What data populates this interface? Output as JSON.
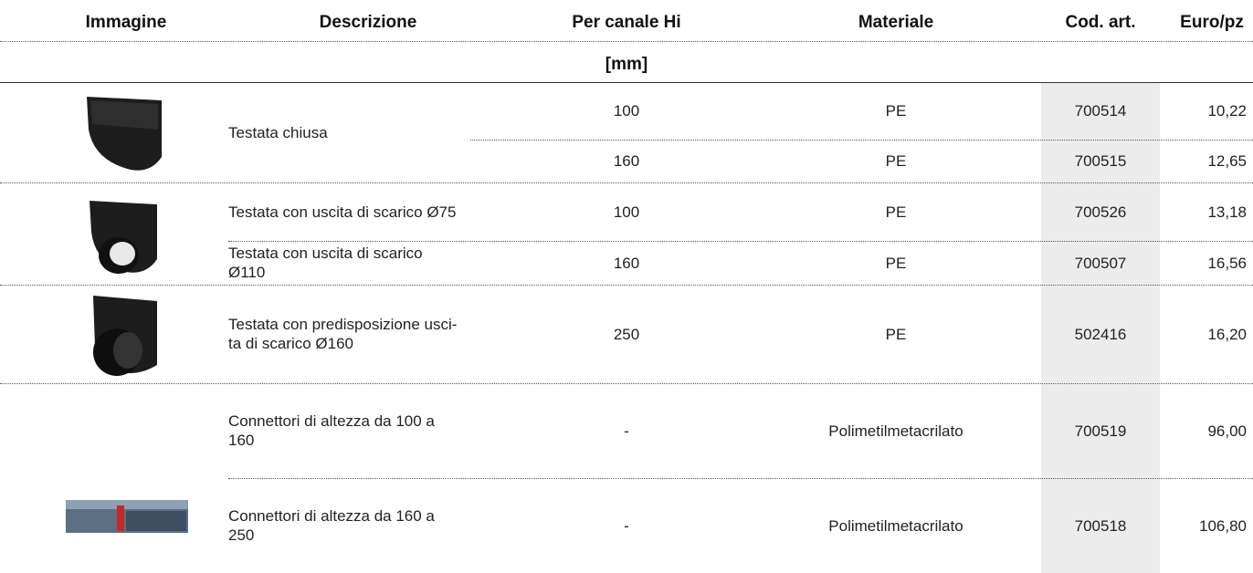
{
  "header": {
    "columns": [
      "Immagine",
      "Descrizione",
      "Per canale Hi",
      "Materiale",
      "Cod. art.",
      "Euro/pz"
    ],
    "unit": "[mm]"
  },
  "rows": [
    {
      "description": "Testata chiusa",
      "hi": 100,
      "material": "PE",
      "code": 700514,
      "price": "10,22"
    },
    {
      "hi": 160,
      "material": "PE",
      "code": 700515,
      "price": "12,65"
    },
    {
      "description": "Testata con uscita di scarico Ø75",
      "hi": 100,
      "material": "PE",
      "code": 700526,
      "price": "13,18"
    },
    {
      "description": "Testata con uscita di scarico\nØ110",
      "hi": 160,
      "material": "PE",
      "code": 700507,
      "price": "16,56"
    },
    {
      "description": "Testata con predisposizione usci-\nta di scarico Ø160",
      "hi": 250,
      "material": "PE",
      "code": 502416,
      "price": "16,20"
    },
    {
      "description": "Connettori di altezza da 100 a\n160",
      "hi": "-",
      "material": "Polimetilmetacrilato",
      "code": 700519,
      "price": "96,00"
    },
    {
      "description": "Connettori di altezza da 160 a\n250",
      "hi": "-",
      "material": "Polimetilmetacrilato",
      "code": 700518,
      "price": "106,80"
    }
  ]
}
